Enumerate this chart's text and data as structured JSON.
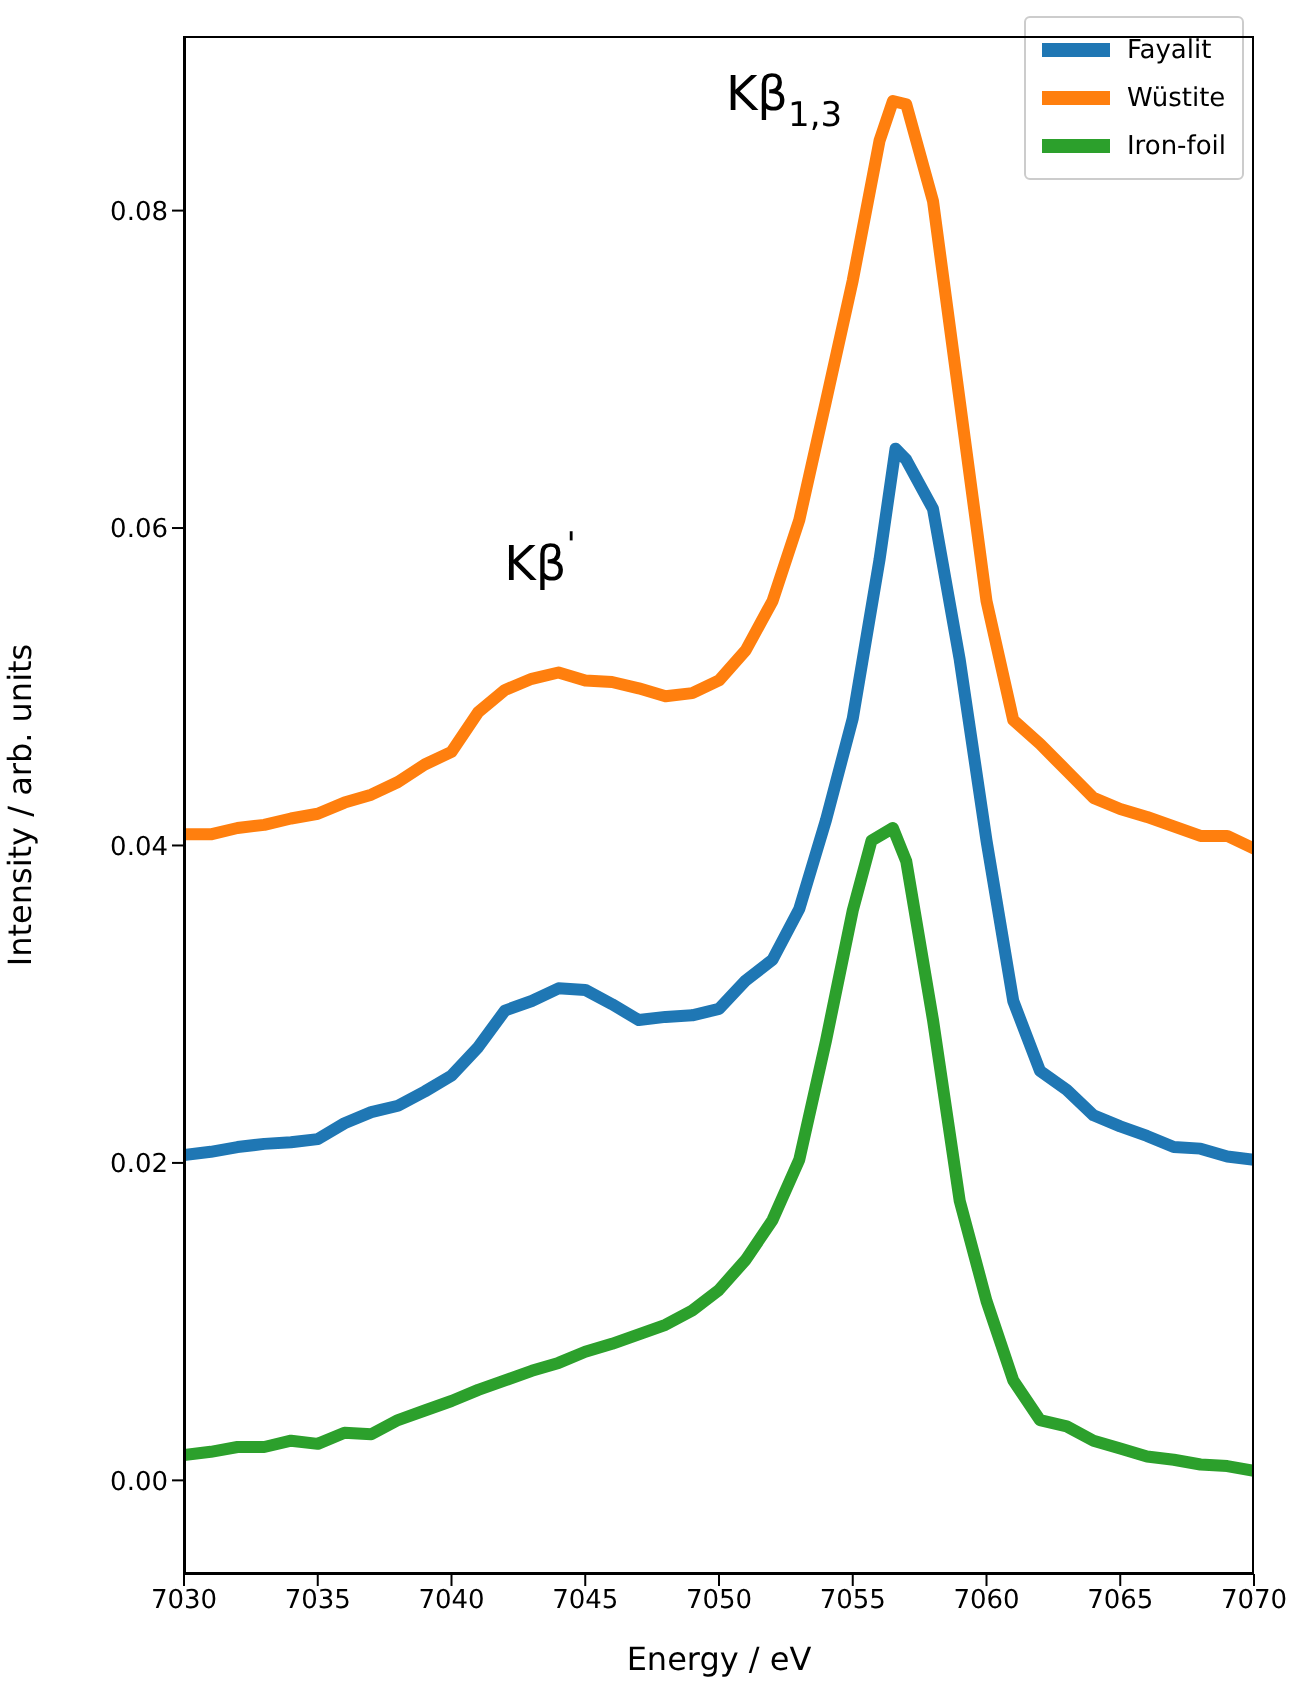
{
  "chart_data": {
    "type": "line",
    "xlabel": "Energy / eV",
    "ylabel": "Intensity / arb. units",
    "xlim": [
      7030,
      7070
    ],
    "xticks": [
      7030,
      7035,
      7040,
      7045,
      7050,
      7055,
      7060,
      7065,
      7070
    ],
    "ylim": [
      -0.0059,
      0.091
    ],
    "yticks": [
      {
        "value": 0,
        "label": "0.00"
      },
      {
        "value": 0.02,
        "label": "0.02"
      },
      {
        "value": 0.04,
        "label": "0.04"
      },
      {
        "value": 0.06,
        "label": "0.06"
      },
      {
        "value": 0.08,
        "label": "0.08"
      }
    ],
    "legend": "top right",
    "grid": false,
    "marker": "none",
    "line_style": "solid",
    "annotations": [
      "Kβ$^{'}$",
      "Kβ$_{1,3}$"
    ],
    "series": [
      {
        "name": "Fayalit",
        "color": "#1f77b4",
        "x": [
          7030,
          7031,
          7032,
          7033,
          7034,
          7035,
          7036,
          7037,
          7038,
          7039,
          7040,
          7041,
          7042,
          7043,
          7044,
          7045,
          7046,
          7047,
          7048,
          7049,
          7050,
          7051,
          7052,
          7053,
          7054,
          7055,
          7056,
          7056.6,
          7057,
          7058,
          7059,
          7060,
          7061,
          7062,
          7063,
          7064,
          7065,
          7066,
          7067,
          7068,
          7069,
          7070
        ],
        "values": [
          0.0205,
          0.0207,
          0.021,
          0.0212,
          0.0213,
          0.0215,
          0.0225,
          0.0232,
          0.0236,
          0.0245,
          0.0255,
          0.0273,
          0.0296,
          0.0302,
          0.031,
          0.0309,
          0.03,
          0.029,
          0.0292,
          0.0293,
          0.0297,
          0.0315,
          0.0328,
          0.036,
          0.0416,
          0.048,
          0.058,
          0.065,
          0.0643,
          0.0612,
          0.0517,
          0.0403,
          0.0302,
          0.0258,
          0.0246,
          0.023,
          0.0223,
          0.0217,
          0.021,
          0.0209,
          0.0204,
          0.0202
        ]
      },
      {
        "name": "Wüstite",
        "color": "#ff7f0e",
        "x": [
          7030,
          7031,
          7032,
          7033,
          7034,
          7035,
          7036,
          7037,
          7038,
          7039,
          7040,
          7041,
          7042,
          7043,
          7044,
          7045,
          7046,
          7047,
          7048,
          7049,
          7050,
          7051,
          7052,
          7053,
          7054,
          7055,
          7056,
          7056.5,
          7057,
          7058,
          7059,
          7060,
          7061,
          7062,
          7063,
          7064,
          7065,
          7066,
          7067,
          7068,
          7069,
          7070
        ],
        "values": [
          0.0407,
          0.0407,
          0.0411,
          0.0413,
          0.0417,
          0.042,
          0.0427,
          0.0432,
          0.044,
          0.0451,
          0.0459,
          0.0484,
          0.0498,
          0.0505,
          0.0509,
          0.0504,
          0.0503,
          0.0499,
          0.0494,
          0.0496,
          0.0504,
          0.0523,
          0.0554,
          0.0605,
          0.068,
          0.0756,
          0.0844,
          0.0869,
          0.0867,
          0.0806,
          0.068,
          0.0554,
          0.0479,
          0.0464,
          0.0447,
          0.043,
          0.0423,
          0.0418,
          0.0412,
          0.0406,
          0.0406,
          0.0398
        ]
      },
      {
        "name": "Iron-foil",
        "color": "#2ca02c",
        "x": [
          7030,
          7031,
          7032,
          7033,
          7034,
          7035,
          7036,
          7037,
          7038,
          7039,
          7040,
          7041,
          7042,
          7043,
          7044,
          7045,
          7046,
          7047,
          7048,
          7049,
          7050,
          7051,
          7052,
          7053,
          7054,
          7055,
          7055.7,
          7056.5,
          7057,
          7058,
          7059,
          7060,
          7061,
          7062,
          7063,
          7064,
          7065,
          7066,
          7067,
          7068,
          7069,
          7070
        ],
        "values": [
          0.0016,
          0.0018,
          0.0021,
          0.0021,
          0.0025,
          0.0023,
          0.003,
          0.0029,
          0.0038,
          0.0044,
          0.005,
          0.0057,
          0.0063,
          0.0069,
          0.0074,
          0.0081,
          0.0086,
          0.0092,
          0.0098,
          0.0107,
          0.012,
          0.0139,
          0.0164,
          0.0202,
          0.0277,
          0.0359,
          0.0403,
          0.0411,
          0.039,
          0.029,
          0.0176,
          0.0113,
          0.0063,
          0.0038,
          0.0034,
          0.0025,
          0.002,
          0.0015,
          0.0013,
          0.001,
          0.0009,
          0.0006
        ]
      }
    ]
  }
}
